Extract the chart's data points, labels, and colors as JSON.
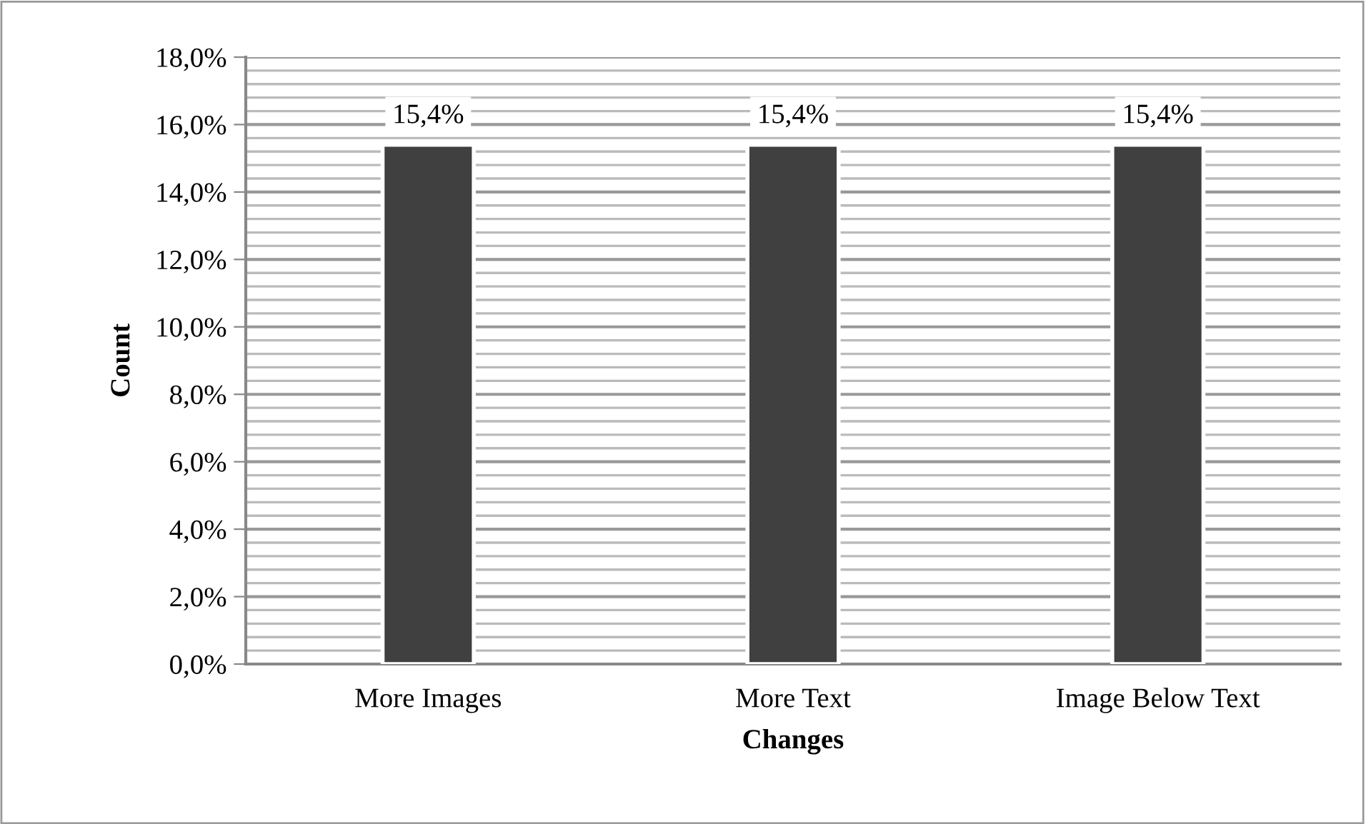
{
  "chart_data": {
    "type": "bar",
    "xlabel": "Changes",
    "ylabel": "Count",
    "categories": [
      "More Images",
      "More Text",
      "Image Below Text"
    ],
    "values": [
      15.4,
      15.4,
      15.4
    ],
    "value_labels": [
      "15,4%",
      "15,4%",
      "15,4%"
    ],
    "color": "#404040",
    "ylim": [
      0,
      18
    ],
    "yticks": [
      {
        "value": 0,
        "label": "0,0%"
      },
      {
        "value": 2,
        "label": "2,0%"
      },
      {
        "value": 4,
        "label": "4,0%"
      },
      {
        "value": 6,
        "label": "6,0%"
      },
      {
        "value": 8,
        "label": "8,0%"
      },
      {
        "value": 10,
        "label": "10,0%"
      },
      {
        "value": 12,
        "label": "12,0%"
      },
      {
        "value": 14,
        "label": "14,0%"
      },
      {
        "value": 16,
        "label": "16,0%"
      },
      {
        "value": 18,
        "label": "18,0%"
      }
    ],
    "grid": true
  }
}
